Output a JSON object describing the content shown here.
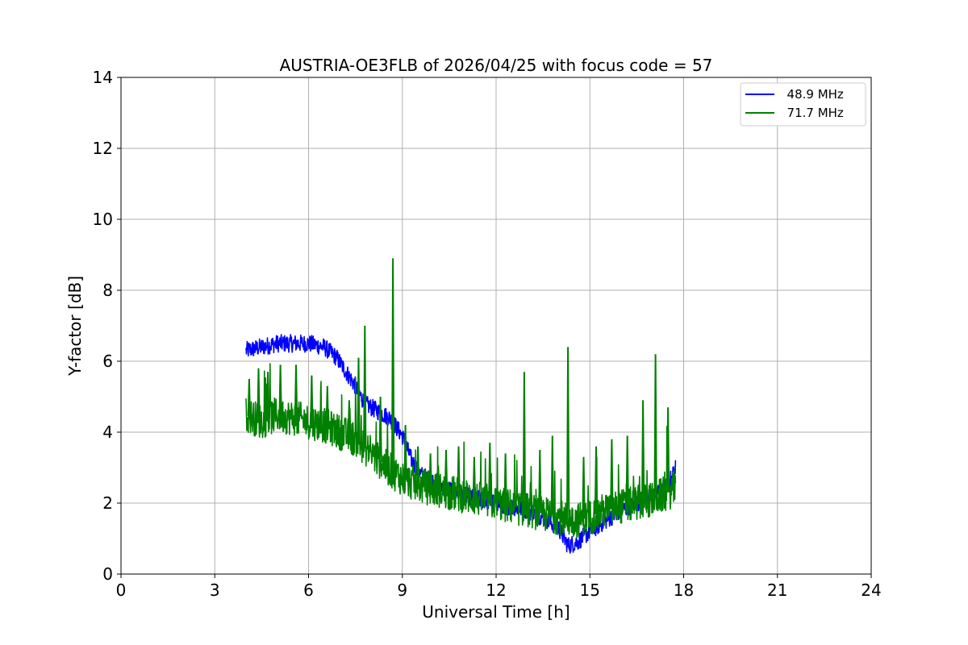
{
  "chart_data": {
    "type": "line",
    "title": "AUSTRIA-OE3FLB of 2026/04/25 with focus code = 57",
    "xlabel": "Universal Time [h]",
    "ylabel": "Y-factor [dB]",
    "xlim": [
      0,
      24
    ],
    "ylim": [
      0,
      14
    ],
    "xticks": [
      0,
      3,
      6,
      9,
      12,
      15,
      18,
      21,
      24
    ],
    "yticks": [
      0,
      2,
      4,
      6,
      8,
      10,
      12,
      14
    ],
    "grid": true,
    "legend_position": "top-right",
    "series": [
      {
        "name": "48.9 MHz",
        "label": "  48.9 MHz",
        "color": "#0000ff",
        "x": [
          4.0,
          4.5,
          5.0,
          5.5,
          6.0,
          6.5,
          6.9,
          7.2,
          7.5,
          7.8,
          8.2,
          8.6,
          9.0,
          9.3,
          9.6,
          10.0,
          10.5,
          11.0,
          11.5,
          12.0,
          12.5,
          13.0,
          13.5,
          14.0,
          14.3,
          14.6,
          15.0,
          15.5,
          16.0,
          16.5,
          17.0,
          17.5,
          17.75
        ],
        "values": [
          6.3,
          6.4,
          6.5,
          6.5,
          6.5,
          6.4,
          6.1,
          5.7,
          5.3,
          4.8,
          4.6,
          4.4,
          3.9,
          3.2,
          2.8,
          2.6,
          2.4,
          2.2,
          2.1,
          2.0,
          1.9,
          1.8,
          1.6,
          1.3,
          0.8,
          0.9,
          1.2,
          1.5,
          1.8,
          2.0,
          2.2,
          2.5,
          3.0
        ]
      },
      {
        "name": "71.7 MHz",
        "label": "  71.7 MHz",
        "color": "#008000",
        "x": [
          4.0,
          4.5,
          5.0,
          5.5,
          6.0,
          6.5,
          7.0,
          7.5,
          8.0,
          8.5,
          9.0,
          9.5,
          10.0,
          10.5,
          11.0,
          11.5,
          12.0,
          12.5,
          13.0,
          13.5,
          14.0,
          14.5,
          15.0,
          15.5,
          16.0,
          16.5,
          17.0,
          17.5,
          17.75
        ],
        "values": [
          4.5,
          4.3,
          4.5,
          4.4,
          4.3,
          4.2,
          4.0,
          3.8,
          3.4,
          3.0,
          2.7,
          2.5,
          2.4,
          2.3,
          2.2,
          2.1,
          2.0,
          1.9,
          1.8,
          1.7,
          1.6,
          1.5,
          1.6,
          1.8,
          1.9,
          2.0,
          2.1,
          2.3,
          2.4
        ],
        "spikes_x": [
          4.1,
          4.4,
          4.7,
          5.1,
          5.6,
          6.1,
          6.6,
          7.3,
          7.6,
          7.8,
          8.3,
          8.7,
          9.1,
          9.5,
          9.9,
          10.4,
          10.8,
          11.3,
          11.8,
          12.3,
          12.9,
          13.4,
          13.8,
          14.3,
          14.8,
          15.2,
          15.7,
          16.2,
          16.7,
          17.1,
          17.5
        ],
        "spikes_values": [
          5.5,
          5.8,
          5.7,
          5.9,
          5.9,
          5.6,
          5.3,
          4.9,
          6.1,
          7.0,
          5.0,
          8.9,
          4.2,
          3.6,
          3.4,
          3.5,
          3.6,
          3.3,
          3.7,
          3.4,
          5.7,
          3.5,
          3.9,
          6.4,
          3.3,
          3.6,
          3.8,
          3.9,
          4.9,
          6.2,
          4.7
        ]
      }
    ]
  }
}
